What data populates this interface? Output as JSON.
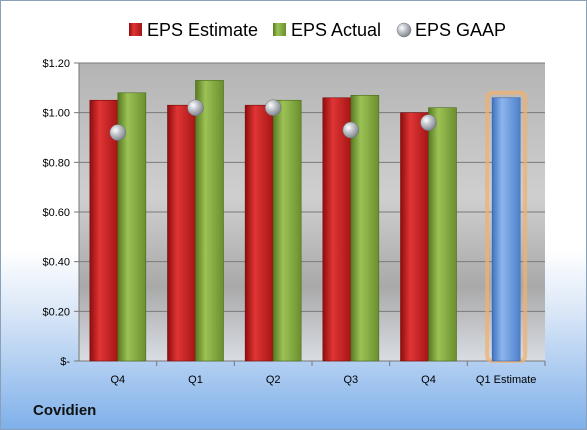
{
  "company": "Covidien",
  "chart_data": {
    "type": "bar",
    "categories": [
      "Q4",
      "Q1",
      "Q2",
      "Q3",
      "Q4",
      "Q1 Estimate"
    ],
    "series": [
      {
        "name": "EPS Estimate",
        "color": "#cc1f1f",
        "values": [
          1.05,
          1.03,
          1.03,
          1.06,
          1.0,
          null
        ]
      },
      {
        "name": "EPS Actual",
        "color": "#7ea33a",
        "values": [
          1.08,
          1.13,
          1.05,
          1.07,
          1.02,
          null
        ]
      },
      {
        "name": "EPS GAAP",
        "color": "#a8acb2",
        "marker": "circle",
        "values": [
          0.92,
          1.02,
          1.02,
          0.93,
          0.96,
          null
        ]
      }
    ],
    "projection": {
      "category": "Q1 Estimate",
      "value": 1.06,
      "color": "#5b8fd6",
      "glow": "#f0b070"
    },
    "ylim": [
      0,
      1.2
    ],
    "yticks": [
      0,
      0.2,
      0.4,
      0.6,
      0.8,
      1.0,
      1.2
    ],
    "ytick_labels": [
      "$-",
      "$0.20",
      "$0.40",
      "$0.60",
      "$0.80",
      "$1.00",
      "$1.20"
    ],
    "grid": true,
    "legend_position": "top"
  }
}
